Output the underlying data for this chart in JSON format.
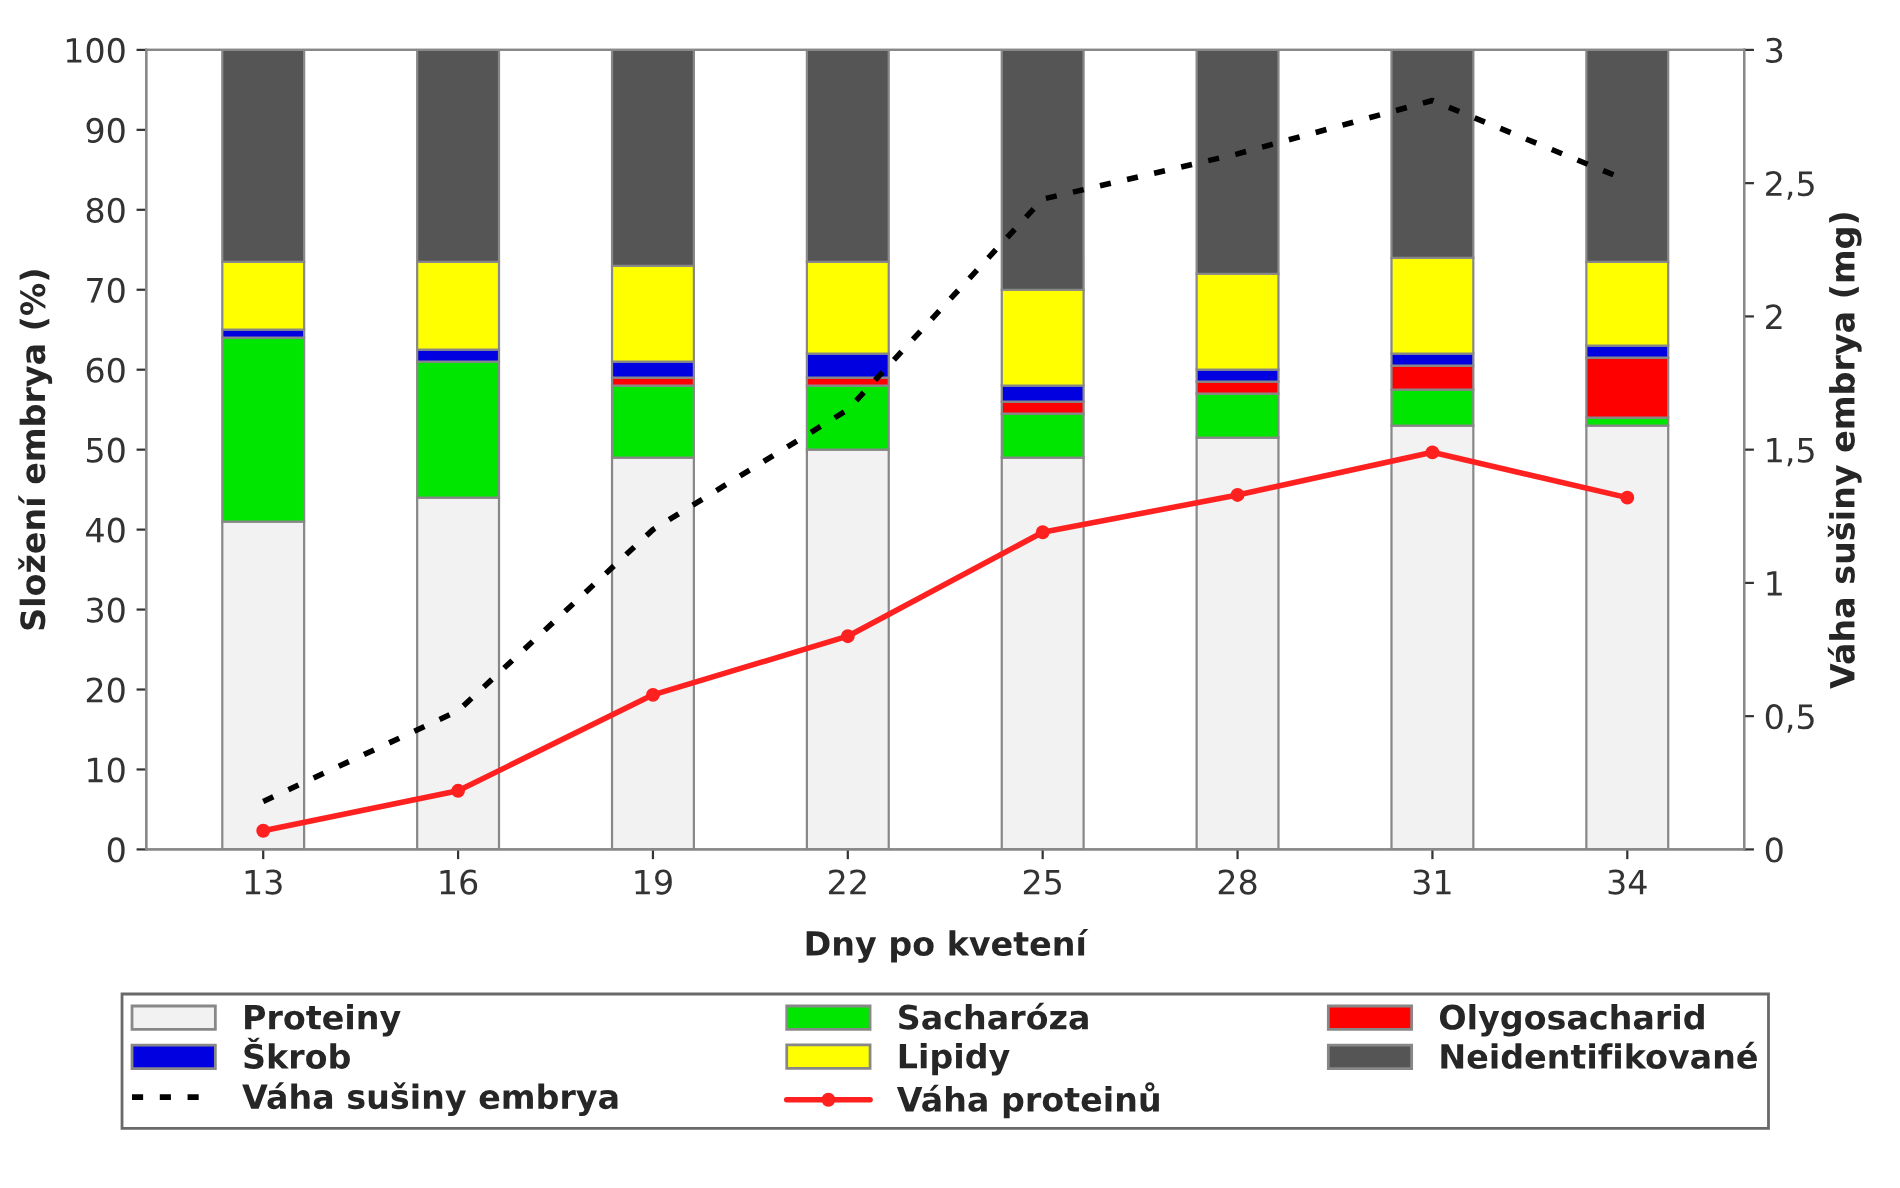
{
  "chart_data": {
    "type": "bar",
    "stacked": true,
    "xlabel": "Dny po kvetení",
    "ylabel": "Složení embrya (%)",
    "y2label": "Váha sušiny embrya (mg)",
    "categories": [
      "13",
      "16",
      "19",
      "22",
      "25",
      "28",
      "31",
      "34"
    ],
    "series": [
      {
        "name": "Proteiny",
        "color": "#f2f2f2",
        "values": [
          41,
          44,
          49,
          50,
          49,
          51.5,
          53,
          53
        ]
      },
      {
        "name": "Sacharóza",
        "color": "#00e600",
        "values": [
          23,
          17,
          9,
          8,
          5.5,
          5.5,
          4.5,
          1
        ]
      },
      {
        "name": "Olygosacharid",
        "color": "#ff0000",
        "values": [
          0,
          0,
          1,
          1,
          1.5,
          1.5,
          3,
          7.5
        ]
      },
      {
        "name": "Škrob",
        "color": "#0000e0",
        "values": [
          1,
          1.5,
          2,
          3,
          2,
          1.5,
          1.5,
          1.5
        ]
      },
      {
        "name": "Lipidy",
        "color": "#ffff00",
        "values": [
          8.5,
          11,
          12,
          11.5,
          12,
          12,
          12,
          10.5
        ]
      },
      {
        "name": "Neidentifikované",
        "color": "#555555",
        "values": [
          26.5,
          26.5,
          27,
          26.5,
          30,
          28,
          26,
          26.5
        ]
      },
      {
        "name": "Váha sušiny embrya",
        "type": "line",
        "axis": "y2",
        "color": "#000000",
        "line_style": "dashed",
        "marker": "none",
        "values": [
          0.18,
          0.52,
          1.2,
          1.65,
          2.44,
          2.61,
          2.81,
          2.51
        ]
      },
      {
        "name": "Váha proteinů",
        "type": "line",
        "axis": "y2",
        "color": "#ff2020",
        "line_style": "solid",
        "marker": "circle",
        "values": [
          0.07,
          0.22,
          0.58,
          0.8,
          1.19,
          1.33,
          1.49,
          1.32
        ]
      }
    ],
    "ylim": [
      0,
      100
    ],
    "yticks": [
      0,
      10,
      20,
      30,
      40,
      50,
      60,
      70,
      80,
      90,
      100
    ],
    "y2lim": [
      0,
      3
    ],
    "y2ticks": [
      0,
      {
        "value": 0.5,
        "label": "0,5"
      },
      1,
      {
        "value": 1.5,
        "label": "1,5"
      },
      2,
      {
        "value": 2.5,
        "label": "2,5"
      },
      3
    ],
    "grid": false,
    "legend": "bottom"
  }
}
